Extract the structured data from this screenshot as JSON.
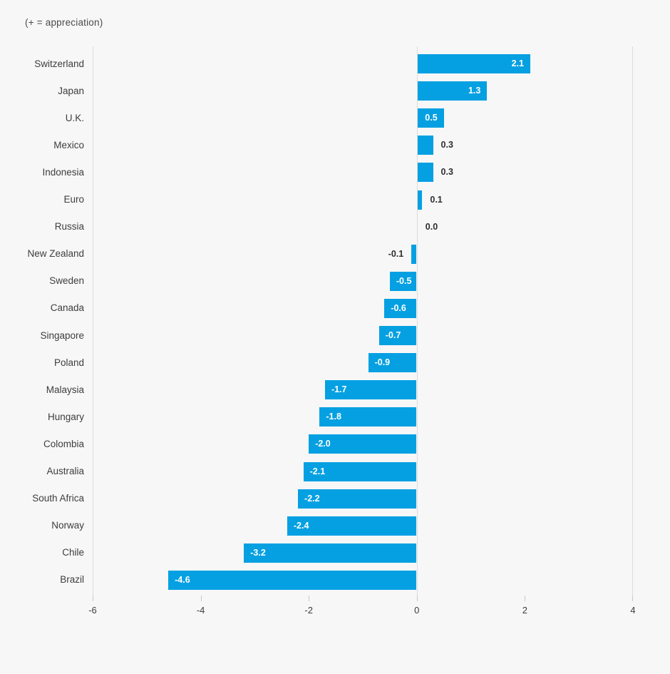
{
  "title": "(+ = appreciation)",
  "colors": {
    "background": "#f7f7f7",
    "bar": "#05a0e2",
    "value_label_inside": "#ffffff",
    "value_label_outside": "#2e2e2e",
    "gridline": "#dcdcdc",
    "axis_text": "#3d3d3d"
  },
  "chart_data": {
    "type": "bar",
    "orientation": "horizontal",
    "title": "(+ = appreciation)",
    "categories": [
      "Switzerland",
      "Japan",
      "U.K.",
      "Mexico",
      "Indonesia",
      "Euro",
      "Russia",
      "New Zealand",
      "Sweden",
      "Canada",
      "Singapore",
      "Poland",
      "Malaysia",
      "Hungary",
      "Colombia",
      "Australia",
      "South Africa",
      "Norway",
      "Chile",
      "Brazil"
    ],
    "values": [
      2.1,
      1.3,
      0.5,
      0.3,
      0.3,
      0.1,
      0.0,
      -0.1,
      -0.5,
      -0.6,
      -0.7,
      -0.9,
      -1.7,
      -1.8,
      -2.0,
      -2.1,
      -2.2,
      -2.4,
      -3.2,
      -4.6
    ],
    "value_labels": [
      "2.1",
      "1.3",
      "0.5",
      "0.3",
      "0.3",
      "0.1",
      "0.0",
      "-0.1",
      "-0.5",
      "-0.6",
      "-0.7",
      "-0.9",
      "-1.7",
      "-1.8",
      "-2.0",
      "-2.1",
      "-2.2",
      "-2.4",
      "-3.2",
      "-4.6"
    ],
    "xlabel": "",
    "ylabel": "",
    "xlim": [
      -6,
      4
    ],
    "xticks": [
      -6,
      -4,
      -2,
      0,
      2,
      4
    ],
    "xtick_labels": [
      "-6",
      "-4",
      "-2",
      "0",
      "2",
      "4"
    ],
    "gridlines_at": [
      -6,
      0,
      4
    ],
    "grid": "vertical-borders-and-zero-only",
    "legend": "none",
    "bar_label_rule": "inside bar end when |value| >= 0.5, outside bar end otherwise"
  }
}
